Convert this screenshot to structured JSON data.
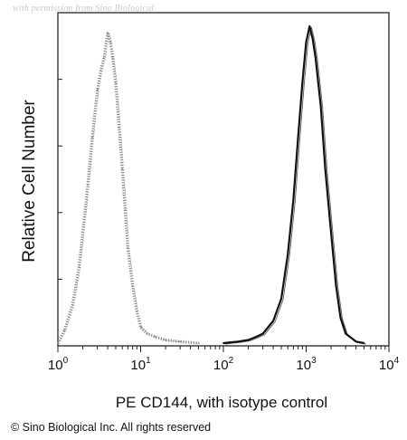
{
  "watermark": "with permission from Sino Biological",
  "copyright": "© Sino Biological Inc. All rights reserved",
  "chart_data": {
    "type": "area",
    "title": "",
    "xlabel": "PE CD144, with isotype control",
    "ylabel": "Relative Cell Number",
    "x_scale": "log",
    "xlim": [
      1,
      10000
    ],
    "ylim": [
      0,
      1
    ],
    "grid": false,
    "x_ticks": [
      {
        "value": 1,
        "base": "10",
        "exp": "0"
      },
      {
        "value": 10,
        "base": "10",
        "exp": "1"
      },
      {
        "value": 100,
        "base": "10",
        "exp": "2"
      },
      {
        "value": 1000,
        "base": "10",
        "exp": "3"
      },
      {
        "value": 10000,
        "base": "10",
        "exp": "4"
      }
    ],
    "series": [
      {
        "color": "#8a8a8a",
        "style": "dotted",
        "x": [
          1.0,
          1.2,
          1.5,
          1.8,
          2.0,
          2.3,
          2.6,
          3.0,
          3.3,
          3.6,
          4.0,
          4.3,
          4.6,
          5.0,
          5.5,
          6.0,
          6.5,
          7.0,
          8.0,
          9.0,
          10.0,
          12.0,
          15.0,
          20.0,
          30.0,
          50.0
        ],
        "y": [
          0.0,
          0.04,
          0.12,
          0.24,
          0.35,
          0.5,
          0.65,
          0.8,
          0.86,
          0.9,
          0.98,
          0.95,
          0.9,
          0.82,
          0.68,
          0.55,
          0.42,
          0.3,
          0.18,
          0.1,
          0.05,
          0.03,
          0.02,
          0.01,
          0.005,
          0.0
        ]
      },
      {
        "color": "#111111",
        "style": "solid",
        "x": [
          100.0,
          150.0,
          200.0,
          250.0,
          300.0,
          400.0,
          500.0,
          600.0,
          700.0,
          800.0,
          900.0,
          1000.0,
          1100.0,
          1200.0,
          1300.0,
          1500.0,
          1700.0,
          2000.0,
          2300.0,
          2600.0,
          3000.0,
          4000.0,
          5000.0
        ],
        "y": [
          0.0,
          0.005,
          0.01,
          0.02,
          0.03,
          0.07,
          0.14,
          0.28,
          0.45,
          0.65,
          0.82,
          0.95,
          1.0,
          0.96,
          0.9,
          0.75,
          0.55,
          0.35,
          0.18,
          0.08,
          0.03,
          0.005,
          0.0
        ]
      }
    ]
  }
}
